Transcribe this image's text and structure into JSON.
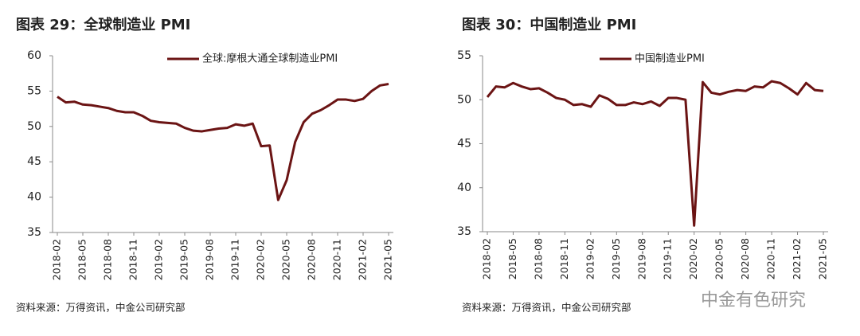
{
  "chart_data": [
    {
      "type": "line",
      "title": "图表 29：全球制造业 PMI",
      "source": "资料来源：万得资讯，中金公司研究部",
      "categories": [
        "2018-02",
        null,
        null,
        "2018-05",
        null,
        null,
        "2018-08",
        null,
        null,
        "2018-11",
        null,
        null,
        "2019-02",
        null,
        null,
        "2019-05",
        null,
        null,
        "2019-08",
        null,
        null,
        "2019-11",
        null,
        null,
        "2020-02",
        null,
        null,
        "2020-05",
        null,
        null,
        "2020-08",
        null,
        null,
        "2020-11",
        null,
        null,
        "2021-02",
        null,
        null,
        "2021-05"
      ],
      "series": [
        {
          "name": "全球:摩根大通全球制造业PMI",
          "color": "#6b1414",
          "values": [
            54.2,
            53.4,
            53.5,
            53.1,
            53.0,
            52.8,
            52.6,
            52.2,
            52.0,
            52.0,
            51.5,
            50.8,
            50.6,
            50.5,
            50.4,
            49.8,
            49.4,
            49.3,
            49.5,
            49.7,
            49.8,
            50.3,
            50.1,
            50.4,
            47.2,
            47.3,
            39.6,
            42.4,
            47.8,
            50.6,
            51.8,
            52.3,
            53.0,
            53.8,
            53.8,
            53.6,
            53.9,
            55.0,
            55.8,
            56.0
          ]
        }
      ],
      "ylim": [
        35,
        60
      ],
      "yticks": [
        35,
        40,
        45,
        50,
        55,
        60
      ],
      "legend": "top"
    },
    {
      "type": "line",
      "title": "图表 30：中国制造业 PMI",
      "source": "资料来源：万得资讯，中金公司研究部",
      "categories": [
        "2018-02",
        null,
        null,
        "2018-05",
        null,
        null,
        "2018-08",
        null,
        null,
        "2018-11",
        null,
        null,
        "2019-02",
        null,
        null,
        "2019-05",
        null,
        null,
        "2019-08",
        null,
        null,
        "2019-11",
        null,
        null,
        "2020-02",
        null,
        null,
        "2020-05",
        null,
        null,
        "2020-08",
        null,
        null,
        "2020-11",
        null,
        null,
        "2021-02",
        null,
        null,
        "2021-05"
      ],
      "series": [
        {
          "name": "中国制造业PMI",
          "color": "#6b1414",
          "values": [
            50.3,
            51.5,
            51.4,
            51.9,
            51.5,
            51.2,
            51.3,
            50.8,
            50.2,
            50.0,
            49.4,
            49.5,
            49.2,
            50.5,
            50.1,
            49.4,
            49.4,
            49.7,
            49.5,
            49.8,
            49.3,
            50.2,
            50.2,
            50.0,
            35.7,
            52.0,
            50.8,
            50.6,
            50.9,
            51.1,
            51.0,
            51.5,
            51.4,
            52.1,
            51.9,
            51.3,
            50.6,
            51.9,
            51.1,
            51.0
          ]
        }
      ],
      "ylim": [
        35,
        55
      ],
      "yticks": [
        35,
        40,
        45,
        50,
        55
      ],
      "legend": "top"
    }
  ],
  "watermark": "中金有色研究"
}
